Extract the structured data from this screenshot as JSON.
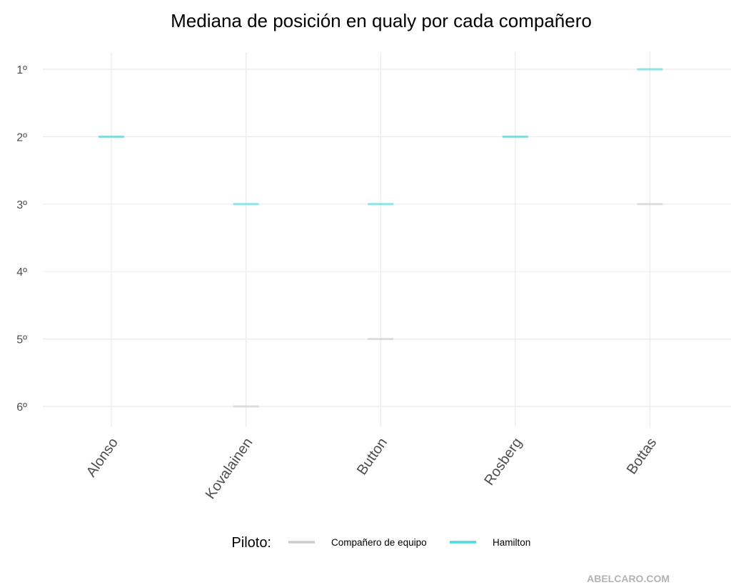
{
  "chart_data": {
    "type": "errorbar-median",
    "title": "Mediana de posición en qualy por cada compañero",
    "categories": [
      "Alonso",
      "Kovalainen",
      "Button",
      "Rosberg",
      "Bottas"
    ],
    "y_ticks": [
      1,
      2,
      3,
      4,
      5,
      6
    ],
    "y_tick_labels": [
      "1º",
      "2º",
      "3º",
      "4º",
      "5º",
      "6º"
    ],
    "ylim": [
      1,
      6
    ],
    "y_reversed": true,
    "grid": true,
    "series": [
      {
        "name": "Compañero de equipo",
        "color": "#cccccc",
        "values": [
          2,
          6,
          5,
          2,
          3
        ]
      },
      {
        "name": "Hamilton",
        "color": "#4dd9dc",
        "values": [
          2,
          3,
          3,
          2,
          1
        ]
      }
    ],
    "legend": {
      "title": "Piloto:",
      "position": "bottom"
    },
    "caption": "ABELCARO.COM"
  }
}
